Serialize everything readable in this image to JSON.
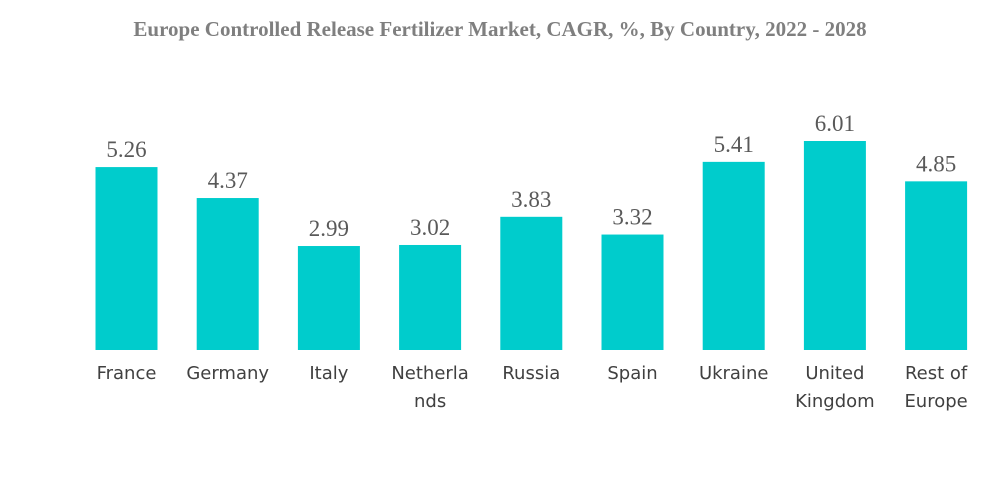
{
  "chart_data": {
    "type": "bar",
    "title": "Europe Controlled Release Fertilizer Market, CAGR, %, By Country, 2022 - 2028",
    "categories": [
      [
        "France"
      ],
      [
        "Germany"
      ],
      [
        "Italy"
      ],
      [
        "Netherla",
        "nds"
      ],
      [
        "Russia"
      ],
      [
        "Spain"
      ],
      [
        "Ukraine"
      ],
      [
        "United",
        "Kingdom"
      ],
      [
        "Rest of",
        "Europe"
      ]
    ],
    "values": [
      5.26,
      4.37,
      2.99,
      3.02,
      3.83,
      3.32,
      5.41,
      6.01,
      4.85
    ],
    "value_labels": [
      "5.26",
      "4.37",
      "2.99",
      "3.02",
      "3.83",
      "3.32",
      "5.41",
      "6.01",
      "4.85"
    ],
    "ylim": [
      0,
      6.01
    ],
    "xlabel": "",
    "ylabel": "",
    "bar_color": "#00cccc",
    "grid": false,
    "legend": "none"
  }
}
